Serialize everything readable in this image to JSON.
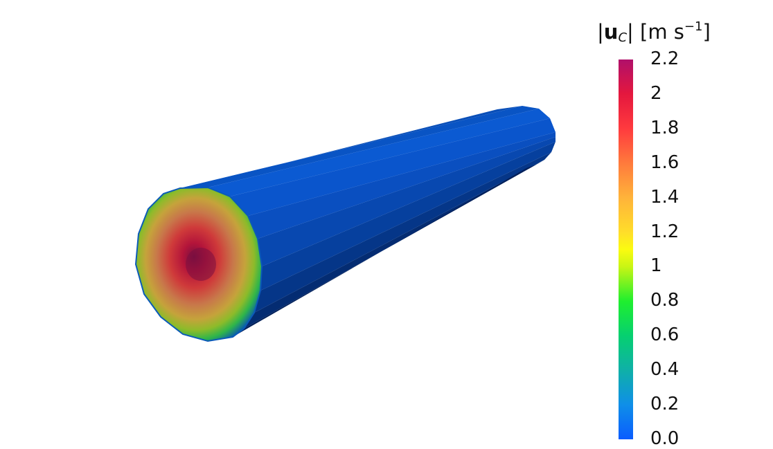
{
  "legend": {
    "title_prefix": "|",
    "title_symbol": "u",
    "title_subscript": "C",
    "title_mid": "| [m s",
    "title_superscript": "−1",
    "title_suffix": "]",
    "ticks": [
      "2.2",
      "2",
      "1.8",
      "1.6",
      "1.4",
      "1.2",
      "1",
      "0.8",
      "0.6",
      "0.4",
      "0.2",
      "0.0"
    ],
    "range": [
      0.0,
      2.2
    ],
    "colormap": [
      {
        "value": 0.0,
        "color": "#0a5cff"
      },
      {
        "value": 0.2,
        "color": "#0f8fe8"
      },
      {
        "value": 0.4,
        "color": "#0fb0a8"
      },
      {
        "value": 0.6,
        "color": "#06d070"
      },
      {
        "value": 0.8,
        "color": "#1fef2e"
      },
      {
        "value": 1.0,
        "color": "#c9f514"
      },
      {
        "value": 1.1,
        "color": "#fbfb10"
      },
      {
        "value": 1.2,
        "color": "#ffdd2a"
      },
      {
        "value": 1.4,
        "color": "#ffb33a"
      },
      {
        "value": 1.6,
        "color": "#ff7a3c"
      },
      {
        "value": 1.8,
        "color": "#ff3a3e"
      },
      {
        "value": 2.0,
        "color": "#e4173e"
      },
      {
        "value": 2.2,
        "color": "#b0106a"
      }
    ]
  },
  "scene": {
    "pipe_surface_color": "#0a4fc8",
    "pipe_shadow_color": "#021a52",
    "pipe_highlight_color": "#0b5ad8",
    "inlet_center_color": "#7a0f40"
  }
}
